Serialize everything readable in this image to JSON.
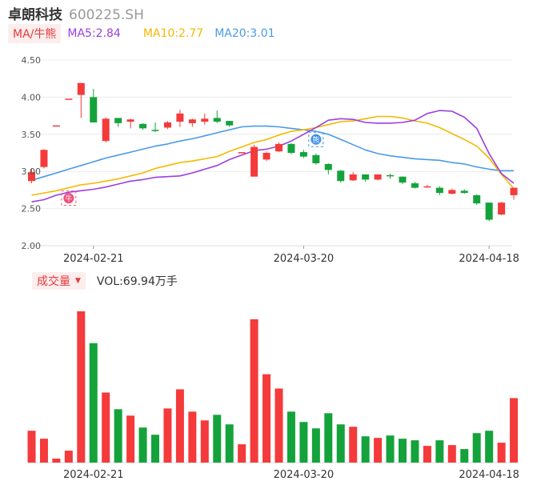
{
  "header": {
    "name": "卓朗科技",
    "code": "600225.SH"
  },
  "ma_bar": {
    "toggle": "MA/牛熊",
    "ma5": "MA5:2.84",
    "ma10": "MA10:2.77",
    "ma20": "MA20:3.01",
    "colors": {
      "ma5": "#9b3fe0",
      "ma10": "#f5b800",
      "ma20": "#4a9ae8"
    }
  },
  "volume_bar": {
    "toggle": "成交量",
    "vol": "VOL:69.94万手"
  },
  "badges": {
    "bull": "牛",
    "bear": "熊"
  },
  "colors": {
    "up": "#f43a3a",
    "down": "#13a33a",
    "grid": "#ececec",
    "axis_text": "#3aa858"
  },
  "chart_data": {
    "type": "candlestick",
    "ylim": [
      2.0,
      4.5
    ],
    "yticks": [
      "4.50",
      "4.00",
      "3.50",
      "3.00",
      "2.50",
      "2.00"
    ],
    "xlabels": [
      {
        "index": 5,
        "label": "2024-02-21"
      },
      {
        "index": 22,
        "label": "2024-03-20"
      },
      {
        "index": 37,
        "label": "2024-04-18"
      }
    ],
    "ohlc": [
      [
        2.87,
        2.99,
        2.84,
        3.04
      ],
      [
        3.06,
        3.29,
        3.04,
        3.3
      ],
      [
        3.62,
        3.62,
        3.62,
        3.62
      ],
      [
        3.98,
        3.98,
        3.98,
        3.98
      ],
      [
        4.03,
        4.19,
        3.72,
        4.19
      ],
      [
        4.0,
        3.66,
        3.66,
        4.11
      ],
      [
        3.41,
        3.71,
        3.39,
        3.73
      ],
      [
        3.72,
        3.65,
        3.6,
        3.72
      ],
      [
        3.67,
        3.7,
        3.58,
        3.71
      ],
      [
        3.64,
        3.58,
        3.56,
        3.65
      ],
      [
        3.56,
        3.55,
        3.53,
        3.66
      ],
      [
        3.59,
        3.66,
        3.57,
        3.68
      ],
      [
        3.67,
        3.78,
        3.6,
        3.83
      ],
      [
        3.65,
        3.7,
        3.6,
        3.71
      ],
      [
        3.67,
        3.71,
        3.63,
        3.78
      ],
      [
        3.72,
        3.67,
        3.65,
        3.82
      ],
      [
        3.68,
        3.62,
        3.6,
        3.68
      ],
      [
        3.26,
        3.26,
        3.26,
        3.26
      ],
      [
        2.93,
        3.33,
        2.93,
        3.36
      ],
      [
        3.16,
        3.25,
        3.14,
        3.27
      ],
      [
        3.27,
        3.37,
        3.26,
        3.39
      ],
      [
        3.37,
        3.25,
        3.23,
        3.38
      ],
      [
        3.26,
        3.2,
        3.18,
        3.29
      ],
      [
        3.22,
        3.11,
        3.09,
        3.24
      ],
      [
        3.1,
        3.02,
        2.96,
        3.11
      ],
      [
        3.01,
        2.87,
        2.85,
        3.02
      ],
      [
        2.88,
        2.96,
        2.87,
        2.99
      ],
      [
        2.96,
        2.89,
        2.86,
        2.96
      ],
      [
        2.89,
        2.96,
        2.88,
        2.96
      ],
      [
        2.95,
        2.94,
        2.9,
        2.97
      ],
      [
        2.93,
        2.85,
        2.83,
        2.93
      ],
      [
        2.84,
        2.78,
        2.77,
        2.86
      ],
      [
        2.8,
        2.8,
        2.78,
        2.82
      ],
      [
        2.78,
        2.71,
        2.68,
        2.8
      ],
      [
        2.7,
        2.75,
        2.69,
        2.77
      ],
      [
        2.74,
        2.71,
        2.7,
        2.76
      ],
      [
        2.68,
        2.57,
        2.55,
        2.69
      ],
      [
        2.58,
        2.35,
        2.33,
        2.58
      ],
      [
        2.42,
        2.58,
        2.41,
        2.59
      ],
      [
        2.68,
        2.78,
        2.62,
        2.78
      ]
    ],
    "ma5": [
      2.59,
      2.62,
      2.68,
      2.72,
      2.74,
      2.76,
      2.79,
      2.83,
      2.87,
      2.89,
      2.92,
      2.93,
      2.94,
      2.98,
      3.03,
      3.08,
      3.16,
      3.22,
      3.28,
      3.3,
      3.34,
      3.41,
      3.5,
      3.59,
      3.69,
      3.71,
      3.7,
      3.66,
      3.65,
      3.65,
      3.66,
      3.69,
      3.78,
      3.82,
      3.81,
      3.73,
      3.58,
      3.24,
      2.97,
      2.84
    ],
    "ma10": [
      2.68,
      2.71,
      2.74,
      2.78,
      2.82,
      2.84,
      2.87,
      2.9,
      2.94,
      2.98,
      3.04,
      3.08,
      3.12,
      3.14,
      3.17,
      3.2,
      3.27,
      3.33,
      3.39,
      3.43,
      3.49,
      3.54,
      3.56,
      3.59,
      3.63,
      3.67,
      3.68,
      3.71,
      3.74,
      3.74,
      3.72,
      3.68,
      3.65,
      3.59,
      3.51,
      3.43,
      3.34,
      3.18,
      2.96,
      2.77
    ],
    "ma20": [
      2.88,
      2.93,
      2.98,
      3.03,
      3.08,
      3.13,
      3.18,
      3.22,
      3.26,
      3.3,
      3.34,
      3.37,
      3.41,
      3.44,
      3.48,
      3.52,
      3.56,
      3.6,
      3.61,
      3.61,
      3.6,
      3.58,
      3.56,
      3.54,
      3.5,
      3.43,
      3.36,
      3.29,
      3.24,
      3.21,
      3.19,
      3.17,
      3.16,
      3.15,
      3.12,
      3.1,
      3.06,
      3.03,
      3.01,
      3.01
    ],
    "volume": [
      40,
      30,
      5,
      15,
      190,
      150,
      88,
      67,
      59,
      44,
      35,
      68,
      92,
      64,
      53,
      60,
      48,
      23,
      180,
      111,
      93,
      64,
      51,
      43,
      62,
      48,
      45,
      33,
      31,
      34,
      30,
      28,
      21,
      28,
      22,
      17,
      37,
      40,
      25,
      81
    ],
    "vol_scale_max": 195
  }
}
